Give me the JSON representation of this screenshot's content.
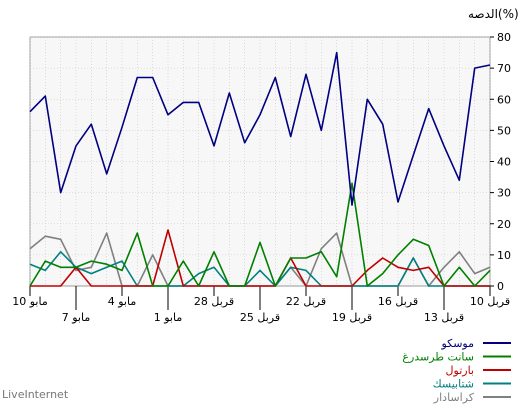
{
  "chart_data": {
    "type": "line",
    "title": "الدصه(%)",
    "ylim": [
      0,
      80
    ],
    "y_ticks": [
      0,
      10,
      20,
      30,
      40,
      50,
      60,
      70,
      80
    ],
    "x_axis_reversed": true,
    "grid": true,
    "legend_position": "bottom-right",
    "x_ticks": [
      {
        "x": 0,
        "label": "10 قربل"
      },
      {
        "x": 3,
        "label": "13 قربل"
      },
      {
        "x": 6,
        "label": "16 قربل"
      },
      {
        "x": 9,
        "label": "19 قربل"
      },
      {
        "x": 12,
        "label": "22 قربل"
      },
      {
        "x": 15,
        "label": "25 قربل"
      },
      {
        "x": 18,
        "label": "28 قربل"
      },
      {
        "x": 21,
        "label": "1 مابو"
      },
      {
        "x": 24,
        "label": "4 مابو"
      },
      {
        "x": 27,
        "label": "7 مابو"
      },
      {
        "x": 30,
        "label": "10 مابو"
      }
    ],
    "series": [
      {
        "name": "موسكو",
        "color": "#000080",
        "values": [
          71,
          70,
          34,
          45,
          57,
          42,
          27,
          52,
          60,
          26,
          75,
          50,
          68,
          48,
          67,
          55,
          46,
          62,
          45,
          59,
          59,
          55,
          67,
          67,
          51,
          36,
          52,
          45,
          30,
          61,
          56
        ]
      },
      {
        "name": "سانت طرسدرغ",
        "color": "#008000",
        "values": [
          5,
          0,
          6,
          0,
          13,
          15,
          10,
          4,
          0,
          33,
          3,
          11,
          9,
          9,
          0,
          14,
          0,
          0,
          11,
          0,
          8,
          0,
          0,
          17,
          5,
          7,
          8,
          6,
          6,
          8,
          0
        ]
      },
      {
        "name": "بارتول",
        "color": "#C00000",
        "values": [
          0,
          0,
          0,
          0,
          6,
          5,
          6,
          9,
          5,
          0,
          0,
          0,
          0,
          9,
          0,
          0,
          0,
          0,
          0,
          0,
          0,
          18,
          0,
          0,
          0,
          0,
          0,
          6,
          0,
          0,
          0
        ]
      },
      {
        "name": "شتابيسك",
        "color": "#008080",
        "values": [
          0,
          0,
          0,
          0,
          0,
          9,
          0,
          0,
          0,
          0,
          0,
          0,
          5,
          6,
          0,
          5,
          0,
          0,
          6,
          4,
          0,
          0,
          0,
          0,
          8,
          6,
          4,
          6,
          11,
          5,
          7
        ]
      },
      {
        "name": "كراسادار",
        "color": "#808080",
        "values": [
          6,
          4,
          11,
          6,
          0,
          9,
          0,
          0,
          0,
          0,
          17,
          12,
          0,
          6,
          0,
          0,
          0,
          0,
          0,
          0,
          0,
          0,
          10,
          0,
          0,
          17,
          6,
          5,
          15,
          16,
          12
        ]
      }
    ]
  },
  "footer": {
    "brand": "LiveInternet"
  }
}
